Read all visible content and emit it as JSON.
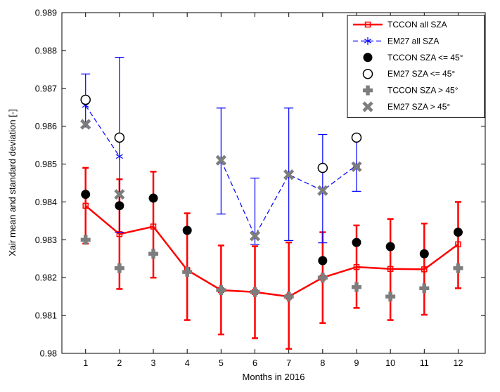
{
  "chart_data": {
    "type": "line",
    "xlabel": "Months in 2016",
    "ylabel": "Xair mean and standard deviation [-]",
    "xlim": [
      0.3,
      12.8
    ],
    "ylim": [
      0.98,
      0.989
    ],
    "xticks": [
      1,
      2,
      3,
      4,
      5,
      6,
      7,
      8,
      9,
      10,
      11,
      12
    ],
    "yticks": [
      0.98,
      0.981,
      0.982,
      0.983,
      0.984,
      0.985,
      0.986,
      0.987,
      0.988,
      0.989
    ],
    "ytick_labels": [
      "0.98",
      "0.981",
      "0.982",
      "0.983",
      "0.984",
      "0.985",
      "0.986",
      "0.987",
      "0.988",
      "0.989"
    ],
    "grid": false,
    "legend_position": "top-right",
    "colors": {
      "tccon_red": "#ff0000",
      "em27_blue": "#0000ff",
      "gray": "#7d7d7d",
      "black": "#000000"
    },
    "series": [
      {
        "name": "TCCON all SZA",
        "color": "#ff0000",
        "marker": "square-open",
        "line_style": "solid",
        "line_width": 2.5,
        "cap_width": 9,
        "x": [
          1,
          2,
          3,
          4,
          5,
          6,
          7,
          8,
          9,
          10,
          11,
          12
        ],
        "y": [
          0.9839,
          0.98315,
          0.98335,
          0.9822,
          0.98167,
          0.98162,
          0.9815,
          0.982,
          0.98228,
          0.98223,
          0.98222,
          0.98288
        ],
        "err_lo": [
          0.9829,
          0.9817,
          0.982,
          0.98088,
          0.9805,
          0.9804,
          0.98012,
          0.9808,
          0.9812,
          0.98088,
          0.98102,
          0.98172
        ],
        "err_hi": [
          0.9849,
          0.9846,
          0.9848,
          0.9837,
          0.98285,
          0.98283,
          0.98293,
          0.9832,
          0.98338,
          0.98355,
          0.98343,
          0.984
        ]
      },
      {
        "name": "EM27 all SZA",
        "color": "#0000ff",
        "marker": "asterisk",
        "line_style": "dashed",
        "line_width": 1.2,
        "cap_width": 13,
        "x": [
          1,
          2,
          5,
          6,
          7,
          8,
          9
        ],
        "y": [
          0.98655,
          0.9852,
          0.9851,
          0.9831,
          0.98472,
          0.9843,
          0.98497
        ],
        "err_lo": [
          0.98598,
          0.9832,
          0.98368,
          0.98288,
          0.98298,
          0.98292,
          0.98428
        ],
        "err_hi": [
          0.98738,
          0.98782,
          0.98648,
          0.98463,
          0.98648,
          0.98578,
          0.9857
        ]
      },
      {
        "name": "TCCON SZA <= 45°",
        "color": "#000000",
        "marker": "circle-filled",
        "line_style": "none",
        "x": [
          1,
          2,
          3,
          4,
          8,
          9,
          10,
          11,
          12
        ],
        "y": [
          0.9842,
          0.9839,
          0.9841,
          0.98325,
          0.98245,
          0.98293,
          0.98282,
          0.98263,
          0.9832
        ]
      },
      {
        "name": "EM27 SZA <= 45°",
        "color": "#000000",
        "marker": "circle-open",
        "line_style": "none",
        "x": [
          1,
          2,
          8,
          9
        ],
        "y": [
          0.9867,
          0.9857,
          0.9849,
          0.9857
        ]
      },
      {
        "name": "TCCON SZA > 45°",
        "color": "#7d7d7d",
        "marker": "plus-thick",
        "line_style": "none",
        "x": [
          1,
          2,
          3,
          4,
          5,
          6,
          7,
          8,
          9,
          10,
          11,
          12
        ],
        "y": [
          0.983,
          0.98225,
          0.98263,
          0.98215,
          0.98167,
          0.98162,
          0.9815,
          0.982,
          0.98175,
          0.9815,
          0.98172,
          0.98225
        ]
      },
      {
        "name": "EM27 SZA > 45°",
        "color": "#7d7d7d",
        "marker": "x-thick",
        "line_style": "none",
        "x": [
          1,
          2,
          5,
          6,
          7,
          8,
          9
        ],
        "y": [
          0.98605,
          0.9842,
          0.9851,
          0.9831,
          0.98472,
          0.9843,
          0.98493
        ]
      }
    ]
  }
}
